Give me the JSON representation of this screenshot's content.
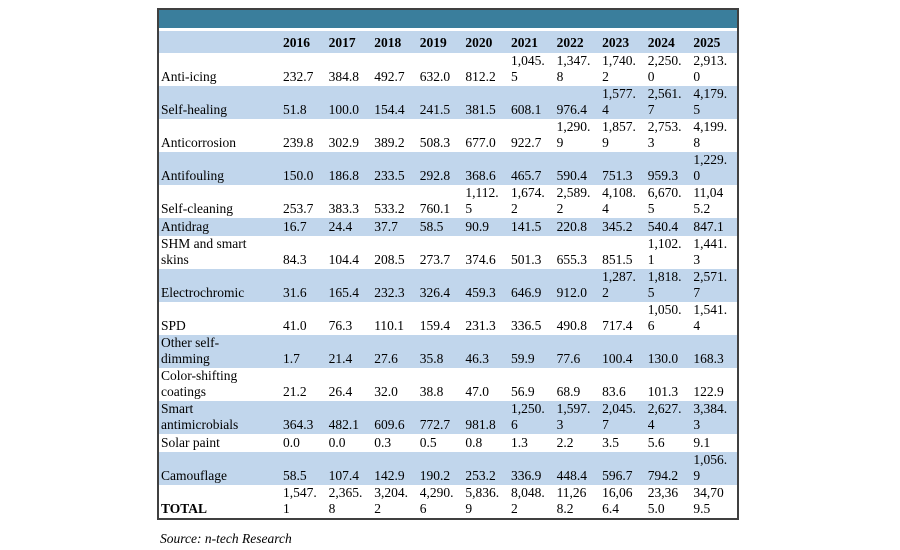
{
  "colors": {
    "header_bar": "#3A7E9C",
    "band": "#C1D6EC",
    "border": "#404040",
    "text": "#000000",
    "background": "#FFFFFF"
  },
  "source_note": "Source: n-tech Research",
  "chart_data": {
    "type": "table",
    "title": "",
    "categories": [
      "2016",
      "2017",
      "2018",
      "2019",
      "2020",
      "2021",
      "2022",
      "2023",
      "2024",
      "2025"
    ],
    "series": [
      {
        "name": "Anti-icing",
        "values": [
          232.7,
          384.8,
          492.7,
          632.0,
          812.2,
          1045.5,
          1347.8,
          1740.2,
          2250.0,
          2913.0
        ]
      },
      {
        "name": "Self-healing",
        "values": [
          51.8,
          100.0,
          154.4,
          241.5,
          381.5,
          608.1,
          976.4,
          1577.4,
          2561.7,
          4179.5
        ]
      },
      {
        "name": "Anticorrosion",
        "values": [
          239.8,
          302.9,
          389.2,
          508.3,
          677.0,
          922.7,
          1290.9,
          1857.9,
          2753.3,
          4199.8
        ]
      },
      {
        "name": "Antifouling",
        "values": [
          150.0,
          186.8,
          233.5,
          292.8,
          368.6,
          465.7,
          590.4,
          751.3,
          959.3,
          1229.0
        ]
      },
      {
        "name": "Self-cleaning",
        "values": [
          253.7,
          383.3,
          533.2,
          760.1,
          1112.5,
          1674.2,
          2589.2,
          4108.4,
          6670.5,
          11045.2
        ]
      },
      {
        "name": "Antidrag",
        "values": [
          16.7,
          24.4,
          37.7,
          58.5,
          90.9,
          141.5,
          220.8,
          345.2,
          540.4,
          847.1
        ]
      },
      {
        "name": "SHM and smart skins",
        "values": [
          84.3,
          104.4,
          208.5,
          273.7,
          374.6,
          501.3,
          655.3,
          851.5,
          1102.1,
          1441.3
        ]
      },
      {
        "name": "Electrochromic",
        "values": [
          31.6,
          165.4,
          232.3,
          326.4,
          459.3,
          646.9,
          912.0,
          1287.2,
          1818.5,
          2571.7
        ]
      },
      {
        "name": "SPD",
        "values": [
          41.0,
          76.3,
          110.1,
          159.4,
          231.3,
          336.5,
          490.8,
          717.4,
          1050.6,
          1541.4
        ]
      },
      {
        "name": "Other self-dimming",
        "values": [
          1.7,
          21.4,
          27.6,
          35.8,
          46.3,
          59.9,
          77.6,
          100.4,
          130.0,
          168.3
        ]
      },
      {
        "name": "Color-shifting coatings",
        "values": [
          21.2,
          26.4,
          32.0,
          38.8,
          47.0,
          56.9,
          68.9,
          83.6,
          101.3,
          122.9
        ]
      },
      {
        "name": "Smart antimicrobials",
        "values": [
          364.3,
          482.1,
          609.6,
          772.7,
          981.8,
          1250.6,
          1597.3,
          2045.7,
          2627.4,
          3384.3
        ]
      },
      {
        "name": "Solar paint",
        "values": [
          0.0,
          0.0,
          0.3,
          0.5,
          0.8,
          1.3,
          2.2,
          3.5,
          5.6,
          9.1
        ]
      },
      {
        "name": "Camouflage",
        "values": [
          58.5,
          107.4,
          142.9,
          190.2,
          253.2,
          336.9,
          448.4,
          596.7,
          794.2,
          1056.9
        ]
      }
    ],
    "total": {
      "name": "TOTAL",
      "values": [
        1547.1,
        2365.8,
        3204.2,
        4290.6,
        5836.9,
        8048.2,
        11268.2,
        16066.4,
        23365.0,
        34709.5
      ]
    },
    "legend_position": "none",
    "grid": false
  }
}
